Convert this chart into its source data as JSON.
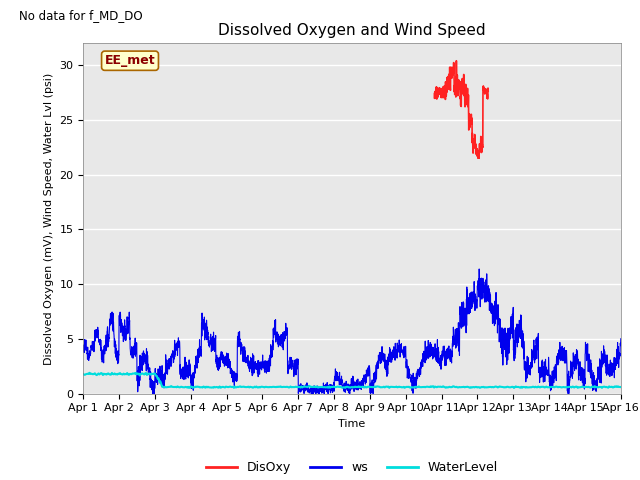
{
  "title": "Dissolved Oxygen and Wind Speed",
  "no_data_text": "No data for f_MD_DO",
  "annotation_text": "EE_met",
  "xlabel": "Time",
  "ylabel": "Dissolved Oxygen (mV), Wind Speed, Water Lvl (psi)",
  "ylim": [
    0,
    32
  ],
  "yticks": [
    0,
    5,
    10,
    15,
    20,
    25,
    30
  ],
  "xlim": [
    0,
    15
  ],
  "xtick_labels": [
    "Apr 1",
    "Apr 2",
    "Apr 3",
    "Apr 4",
    "Apr 5",
    "Apr 6",
    "Apr 7",
    "Apr 8",
    "Apr 9",
    "Apr 10",
    "Apr 11",
    "Apr 12",
    "Apr 13",
    "Apr 14",
    "Apr 15",
    "Apr 16"
  ],
  "bg_color": "#e8e8e8",
  "fig_bg": "#ffffff",
  "legend_labels": [
    "DisOxy",
    "ws",
    "WaterLevel"
  ],
  "legend_colors": [
    "#ff2222",
    "#0000ee",
    "#00dddd"
  ],
  "title_fontsize": 11,
  "label_fontsize": 8,
  "tick_fontsize": 8,
  "legend_fontsize": 9
}
